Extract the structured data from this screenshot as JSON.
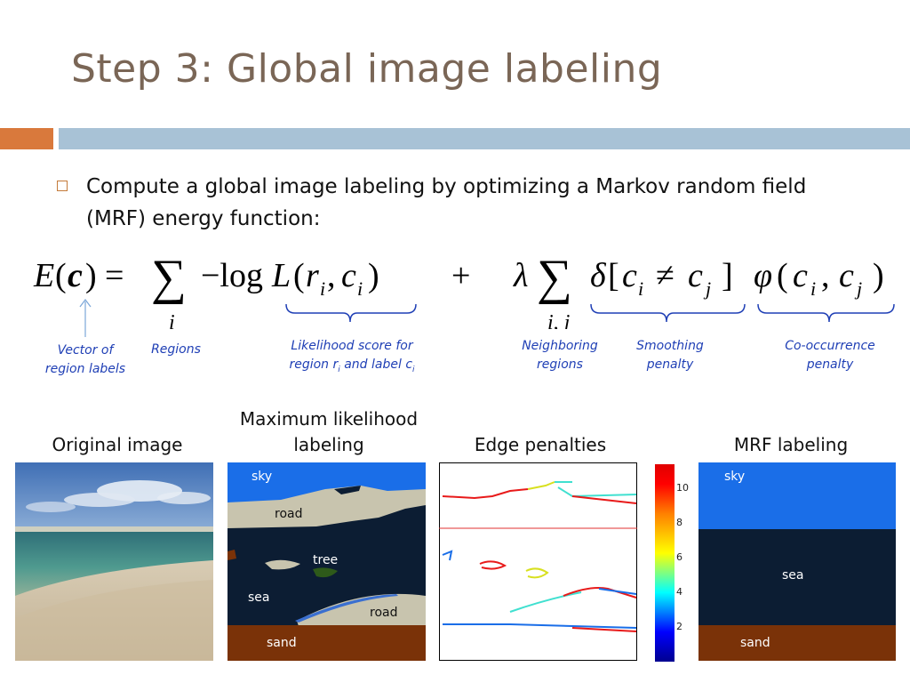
{
  "title": "Step 3: Global image labeling",
  "bullet": "Compute a global image labeling by optimizing a Markov random field (MRF) energy function:",
  "formula": {
    "lhs": "E(c) =",
    "term1": "−logL(r",
    "plus": "+",
    "lambda": "λ",
    "sub_i": "i",
    "sub_ij": "i, j"
  },
  "annotations": {
    "vector": "Vector of region labels",
    "regions": "Regions",
    "likelihood": "Likelihood score for region r",
    "likelihood2": " and label c",
    "neighboring": "Neighboring regions",
    "smoothing": "Smoothing penalty",
    "cooccurrence": "Co-occurrence penalty"
  },
  "captions": {
    "original": "Original image",
    "max_likelihood": "Maximum likelihood labeling",
    "edge": "Edge penalties",
    "mrf": "MRF labeling"
  },
  "labels_ml": {
    "sky": "sky",
    "road1": "road",
    "tree": "tree",
    "sea": "sea",
    "road2": "road",
    "sand": "sand"
  },
  "labels_mrf": {
    "sky": "sky",
    "sea": "sea",
    "sand": "sand"
  },
  "colorbar": {
    "ticks": [
      "10",
      "8",
      "6",
      "4",
      "2"
    ]
  },
  "colors": {
    "title": "#7a6656",
    "accent_orange": "#d9793c",
    "accent_blue": "#a8c2d6",
    "annotation": "#1f3fb5",
    "sky": "#1a6ee8",
    "sea": "#0c1d33",
    "sand": "#7a3208",
    "road": "#c8c4ae"
  }
}
